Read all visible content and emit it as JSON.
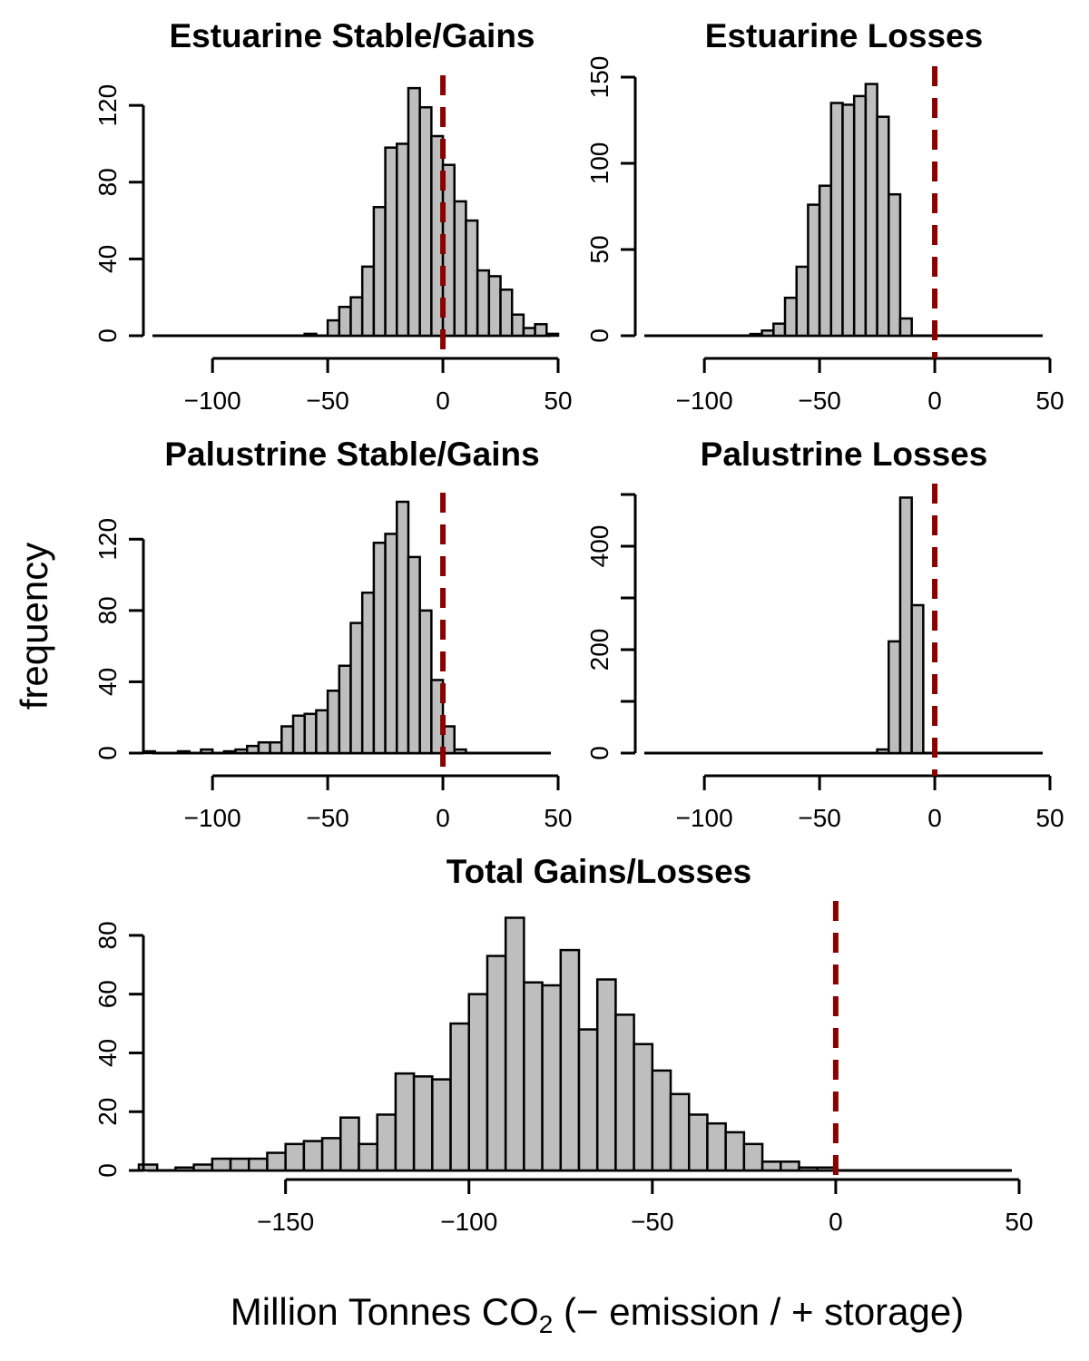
{
  "figure": {
    "ylabel": "frequency",
    "xlabel": {
      "prefix": "Million Tonnes CO",
      "subscript": "2",
      "suffix": " (− emission / + storage)"
    },
    "colors": {
      "bar_fill": "#bebebe",
      "bar_edge": "#000000",
      "reference_line": "#8b0000"
    }
  },
  "chart_data": [
    {
      "id": "estuarine-stable-gains",
      "type": "bar",
      "title": "Estuarine Stable/Gains",
      "bin_width": 5,
      "xlim": [
        -130,
        50
      ],
      "ylim": [
        0,
        130
      ],
      "x_ticks": [
        -100,
        -50,
        0,
        50
      ],
      "y_ticks": [
        0,
        40,
        80,
        120
      ],
      "reference_line_x": 0,
      "bins": [
        {
          "x": -60,
          "count": 1
        },
        {
          "x": -50,
          "count": 8
        },
        {
          "x": -45,
          "count": 15
        },
        {
          "x": -40,
          "count": 20
        },
        {
          "x": -35,
          "count": 36
        },
        {
          "x": -30,
          "count": 67
        },
        {
          "x": -25,
          "count": 98
        },
        {
          "x": -20,
          "count": 100
        },
        {
          "x": -15,
          "count": 129
        },
        {
          "x": -10,
          "count": 119
        },
        {
          "x": -5,
          "count": 104
        },
        {
          "x": 0,
          "count": 89
        },
        {
          "x": 5,
          "count": 70
        },
        {
          "x": 10,
          "count": 60
        },
        {
          "x": 15,
          "count": 34
        },
        {
          "x": 20,
          "count": 31
        },
        {
          "x": 25,
          "count": 24
        },
        {
          "x": 30,
          "count": 11
        },
        {
          "x": 35,
          "count": 4
        },
        {
          "x": 40,
          "count": 6
        },
        {
          "x": 45,
          "count": 1
        }
      ]
    },
    {
      "id": "estuarine-losses",
      "type": "bar",
      "title": "Estuarine Losses",
      "bin_width": 5,
      "xlim": [
        -130,
        50
      ],
      "ylim": [
        0,
        150
      ],
      "x_ticks": [
        -100,
        -50,
        0,
        50
      ],
      "y_ticks": [
        0,
        50,
        100,
        150
      ],
      "reference_line_x": 0,
      "bins": [
        {
          "x": -80,
          "count": 1
        },
        {
          "x": -75,
          "count": 3
        },
        {
          "x": -70,
          "count": 7
        },
        {
          "x": -65,
          "count": 22
        },
        {
          "x": -60,
          "count": 40
        },
        {
          "x": -55,
          "count": 76
        },
        {
          "x": -50,
          "count": 87
        },
        {
          "x": -45,
          "count": 135
        },
        {
          "x": -40,
          "count": 134
        },
        {
          "x": -35,
          "count": 139
        },
        {
          "x": -30,
          "count": 146
        },
        {
          "x": -25,
          "count": 127
        },
        {
          "x": -20,
          "count": 82
        },
        {
          "x": -15,
          "count": 10
        }
      ]
    },
    {
      "id": "palustrine-stable-gains",
      "type": "bar",
      "title": "Palustrine Stable/Gains",
      "bin_width": 5,
      "xlim": [
        -130,
        50
      ],
      "ylim": [
        0,
        140
      ],
      "x_ticks": [
        -100,
        -50,
        0,
        50
      ],
      "y_ticks": [
        0,
        40,
        80,
        120
      ],
      "reference_line_x": 0,
      "bins": [
        {
          "x": -130,
          "count": 1
        },
        {
          "x": -115,
          "count": 1
        },
        {
          "x": -105,
          "count": 2
        },
        {
          "x": -95,
          "count": 1
        },
        {
          "x": -90,
          "count": 2
        },
        {
          "x": -85,
          "count": 4
        },
        {
          "x": -80,
          "count": 6
        },
        {
          "x": -75,
          "count": 6
        },
        {
          "x": -70,
          "count": 15
        },
        {
          "x": -65,
          "count": 21
        },
        {
          "x": -60,
          "count": 22
        },
        {
          "x": -55,
          "count": 24
        },
        {
          "x": -50,
          "count": 35
        },
        {
          "x": -45,
          "count": 49
        },
        {
          "x": -40,
          "count": 73
        },
        {
          "x": -35,
          "count": 90
        },
        {
          "x": -30,
          "count": 118
        },
        {
          "x": -25,
          "count": 123
        },
        {
          "x": -20,
          "count": 141
        },
        {
          "x": -15,
          "count": 110
        },
        {
          "x": -10,
          "count": 80
        },
        {
          "x": -5,
          "count": 41
        },
        {
          "x": 0,
          "count": 15
        },
        {
          "x": 5,
          "count": 2
        }
      ]
    },
    {
      "id": "palustrine-losses",
      "type": "bar",
      "title": "Palustrine Losses",
      "bin_width": 5,
      "xlim": [
        -130,
        50
      ],
      "ylim": [
        0,
        500
      ],
      "x_ticks": [
        -100,
        -50,
        0,
        50
      ],
      "y_ticks": [
        0,
        100,
        200,
        300,
        400,
        500
      ],
      "y_tick_labels": [
        "0",
        "",
        "200",
        "",
        "400",
        ""
      ],
      "reference_line_x": 0,
      "bins": [
        {
          "x": -25,
          "count": 7
        },
        {
          "x": -20,
          "count": 216
        },
        {
          "x": -15,
          "count": 494
        },
        {
          "x": -10,
          "count": 286
        }
      ]
    },
    {
      "id": "total-gains-losses",
      "type": "bar",
      "title": "Total Gains/Losses",
      "bin_width": 5,
      "xlim": [
        -190,
        50
      ],
      "ylim": [
        0,
        88
      ],
      "x_ticks": [
        -150,
        -100,
        -50,
        0,
        50
      ],
      "y_ticks": [
        0,
        20,
        40,
        60,
        80
      ],
      "reference_line_x": 0,
      "bins": [
        {
          "x": -190,
          "count": 2
        },
        {
          "x": -180,
          "count": 1
        },
        {
          "x": -175,
          "count": 2
        },
        {
          "x": -170,
          "count": 4
        },
        {
          "x": -165,
          "count": 4
        },
        {
          "x": -160,
          "count": 4
        },
        {
          "x": -155,
          "count": 6
        },
        {
          "x": -150,
          "count": 9
        },
        {
          "x": -145,
          "count": 10
        },
        {
          "x": -140,
          "count": 11
        },
        {
          "x": -135,
          "count": 18
        },
        {
          "x": -130,
          "count": 9
        },
        {
          "x": -125,
          "count": 19
        },
        {
          "x": -120,
          "count": 33
        },
        {
          "x": -115,
          "count": 32
        },
        {
          "x": -110,
          "count": 31
        },
        {
          "x": -105,
          "count": 50
        },
        {
          "x": -100,
          "count": 60
        },
        {
          "x": -95,
          "count": 73
        },
        {
          "x": -90,
          "count": 86
        },
        {
          "x": -85,
          "count": 64
        },
        {
          "x": -80,
          "count": 63
        },
        {
          "x": -75,
          "count": 75
        },
        {
          "x": -70,
          "count": 48
        },
        {
          "x": -65,
          "count": 65
        },
        {
          "x": -60,
          "count": 53
        },
        {
          "x": -55,
          "count": 43
        },
        {
          "x": -50,
          "count": 34
        },
        {
          "x": -45,
          "count": 26
        },
        {
          "x": -40,
          "count": 19
        },
        {
          "x": -35,
          "count": 16
        },
        {
          "x": -30,
          "count": 13
        },
        {
          "x": -25,
          "count": 9
        },
        {
          "x": -20,
          "count": 3
        },
        {
          "x": -15,
          "count": 3
        },
        {
          "x": -10,
          "count": 1
        },
        {
          "x": -5,
          "count": 1
        }
      ]
    }
  ]
}
